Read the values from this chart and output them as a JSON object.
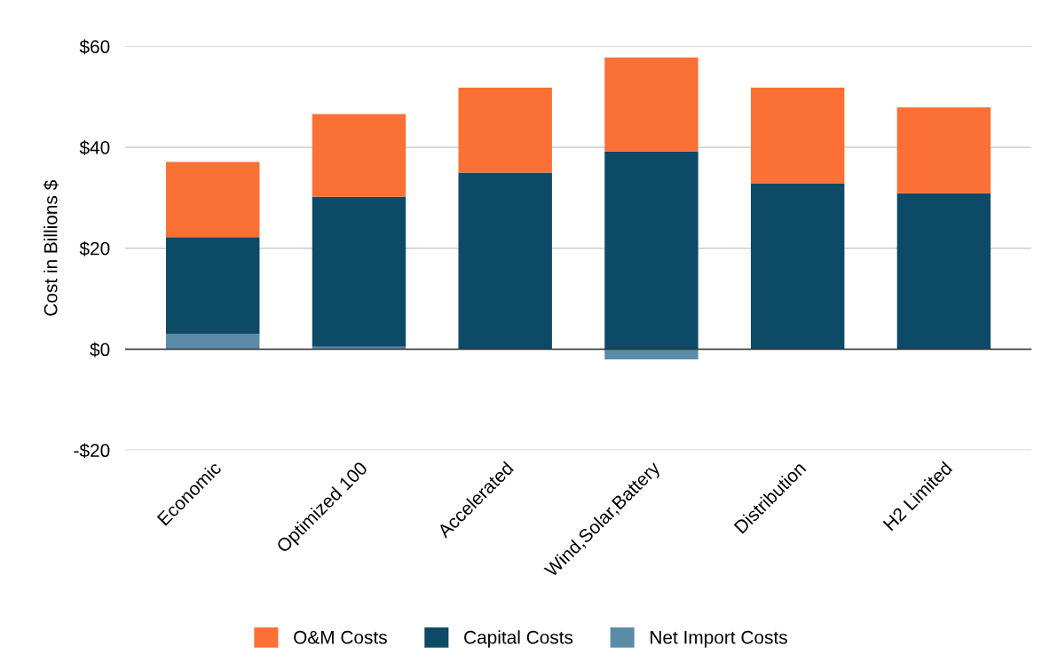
{
  "chart_data": {
    "type": "bar",
    "stacked": true,
    "ylabel": "Cost in Billions $",
    "categories": [
      "Economic",
      "Optimized 100",
      "Accelerated",
      "Wind,Solar,Battery",
      "Distribution",
      "H2 Limited"
    ],
    "series": [
      {
        "name": "Net Import Costs",
        "color": "#5a8ca8",
        "values": [
          3.0,
          0.5,
          0,
          -2.0,
          0,
          0
        ]
      },
      {
        "name": "Capital Costs",
        "color": "#0d4a68",
        "values": [
          19.2,
          29.7,
          35.0,
          39.2,
          32.8,
          30.9
        ]
      },
      {
        "name": "O&M Costs",
        "color": "#fb7035",
        "values": [
          14.9,
          16.4,
          16.8,
          18.6,
          19.0,
          17.0
        ]
      }
    ],
    "ylim": [
      -20,
      60
    ],
    "yticks": [
      {
        "value": -20,
        "label": "-$20"
      },
      {
        "value": 0,
        "label": "$0"
      },
      {
        "value": 20,
        "label": "$20"
      },
      {
        "value": 40,
        "label": "$40"
      },
      {
        "value": 60,
        "label": "$60"
      }
    ],
    "grid": "y",
    "legend": "bottom"
  }
}
